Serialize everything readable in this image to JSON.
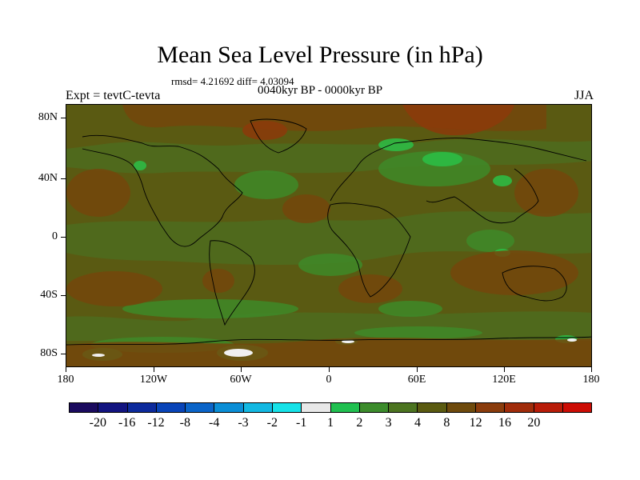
{
  "title": "Mean Sea Level Pressure (in hPa)",
  "stats": "rmsd= 4.21692 diff= 4.03094",
  "subtitle": "0040kyr BP - 0000kyr BP",
  "experiment": "Expt = tevtC-tevta",
  "season": "JJA",
  "y_axis_labels": [
    "80N",
    "40N",
    "0",
    "40S",
    "80S"
  ],
  "x_axis_labels": [
    "180",
    "120W",
    "60W",
    "0",
    "60E",
    "120E",
    "180"
  ],
  "colorbar": {
    "colors": [
      "#1a0a5e",
      "#121480",
      "#0c2a9c",
      "#0844b8",
      "#0a64c8",
      "#0a8ed6",
      "#12b8e2",
      "#16e2e8",
      "#e8e8e8",
      "#20c050",
      "#3c8c2c",
      "#4c7420",
      "#5a5a10",
      "#6e4a0c",
      "#8a3c0c",
      "#a02c0a",
      "#b81c08",
      "#cc0c04"
    ],
    "labels": [
      "-20",
      "-16",
      "-12",
      "-8",
      "-4",
      "-3",
      "-2",
      "-1",
      "1",
      "2",
      "3",
      "4",
      "8",
      "12",
      "16",
      "20"
    ]
  },
  "map_colors": {
    "base": "#5a5a12",
    "greenish": "#4e6c1e",
    "green": "#3e8a28",
    "bright_green": "#2cbf46",
    "brown": "#74460c",
    "red_brown": "#8c3a0a",
    "white": "#f0f0f0",
    "coast": "#000000"
  }
}
